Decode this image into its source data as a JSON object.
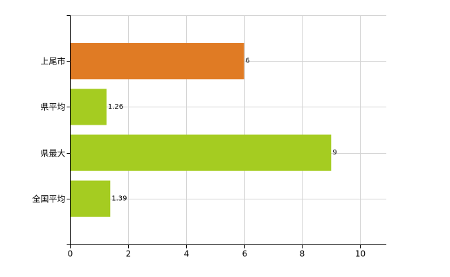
{
  "chart_data": {
    "type": "bar",
    "orientation": "horizontal",
    "categories": [
      "上尾市",
      "県平均",
      "県最大",
      "全国平均"
    ],
    "values": [
      6,
      1.26,
      9,
      1.39
    ],
    "value_labels": [
      "6",
      "1.26",
      "9",
      "1.39"
    ],
    "bar_colors": [
      "#e07b24",
      "#a5cc21",
      "#a5cc21",
      "#a5cc21"
    ],
    "xlim": [
      0,
      10.9
    ],
    "xticks": [
      0,
      2,
      4,
      6,
      8,
      10
    ],
    "grid": true,
    "title": "",
    "xlabel": "",
    "ylabel": ""
  }
}
